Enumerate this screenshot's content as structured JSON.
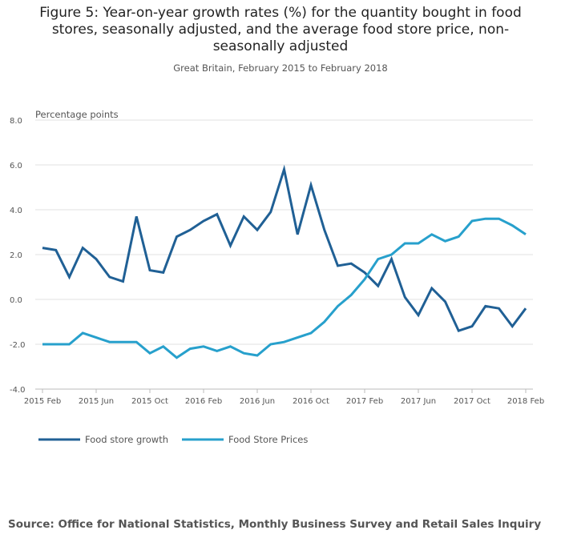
{
  "chart_data": {
    "type": "line",
    "title": "Figure 5: Year-on-year growth rates (%) for the quantity bought in food stores, seasonally adjusted, and the average food store price, non-seasonally adjusted",
    "title_lines": [
      "Figure 5: Year-on-year growth rates (%) for the quantity bought in food",
      "stores, seasonally adjusted, and the average food store price, non-",
      "seasonally adjusted"
    ],
    "subtitle": "Great Britain, February 2015 to February 2018",
    "ylabel": "Percentage points",
    "ylim": [
      -4,
      8
    ],
    "yticks": [
      "8.0",
      "6.0",
      "4.0",
      "2.0",
      "0.0",
      "-2.0",
      "-4.0"
    ],
    "yticks_values": [
      8,
      6,
      4,
      2,
      0,
      -2,
      -4
    ],
    "xticks": [
      "2015 Feb",
      "2015 Jun",
      "2015 Oct",
      "2016 Feb",
      "2016 Jun",
      "2016 Oct",
      "2017 Feb",
      "2017 Jun",
      "2017 Oct",
      "2018 Feb"
    ],
    "x_start": "2015 Feb",
    "x_end": "2018 Feb",
    "grid": true,
    "legend_position": "bottom-left",
    "series": [
      {
        "name": "Food store growth",
        "color": "#206095",
        "values": [
          2.3,
          2.2,
          1.0,
          2.3,
          1.8,
          1.0,
          0.8,
          3.7,
          1.3,
          1.2,
          2.8,
          3.1,
          3.5,
          3.8,
          2.4,
          3.7,
          3.1,
          3.9,
          5.8,
          2.9,
          5.1,
          3.1,
          1.5,
          1.6,
          1.2,
          0.6,
          1.8,
          0.1,
          -0.7,
          0.5,
          -0.1,
          -1.4,
          -1.2,
          -0.3,
          -0.4,
          -1.2,
          -0.4
        ]
      },
      {
        "name": "Food Store Prices",
        "color": "#27a0cc",
        "values": [
          -2.0,
          -2.0,
          -2.0,
          -1.5,
          -1.7,
          -1.9,
          -1.9,
          -1.9,
          -2.4,
          -2.1,
          -2.6,
          -2.2,
          -2.1,
          -2.3,
          -2.1,
          -2.4,
          -2.5,
          -2.0,
          -1.9,
          -1.7,
          -1.5,
          -1.0,
          -0.3,
          0.2,
          0.9,
          1.8,
          2.0,
          2.5,
          2.5,
          2.9,
          2.6,
          2.8,
          3.5,
          3.6,
          3.6,
          3.3,
          2.9
        ]
      }
    ],
    "source": "Source: Office for National Statistics, Monthly Business Survey and Retail Sales Inquiry"
  }
}
